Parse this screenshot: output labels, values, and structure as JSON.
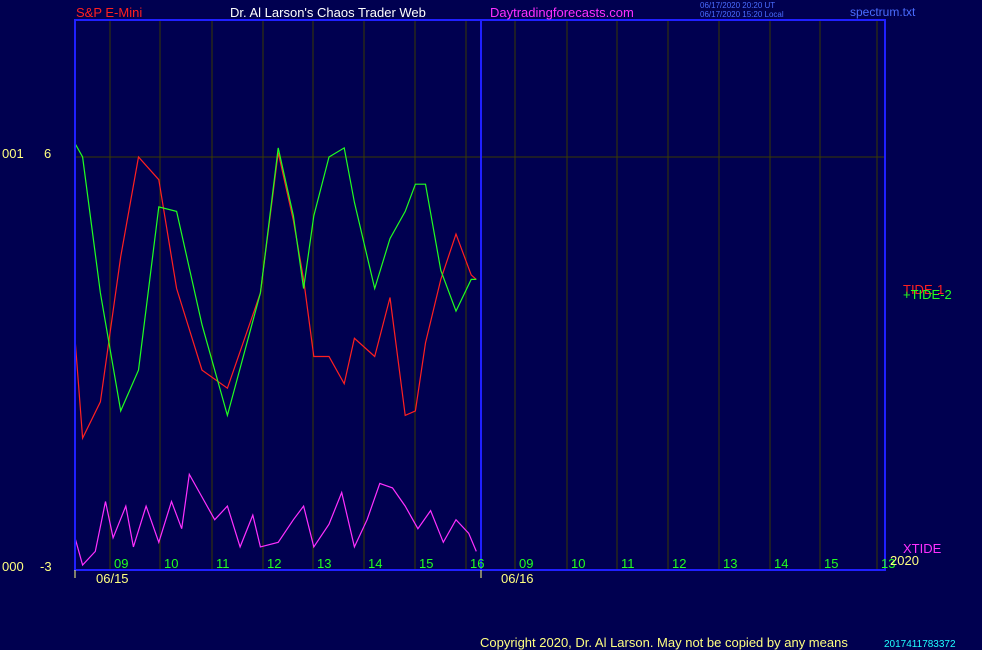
{
  "header": {
    "symbol": "S&P E-Mini",
    "author": "Dr. Al Larson's Chaos Trader Web",
    "site": "Daytradingforecasts.com",
    "stamp_utc": "06/17/2020 20:20 UT",
    "stamp_local": "06/17/2020 15:20 Local",
    "file": "spectrum.txt"
  },
  "left_labels": {
    "upper": "001",
    "upper_value": "6",
    "lower": "000",
    "lower_value": "-3"
  },
  "footer": {
    "copyright": "Copyright 2020, Dr. Al Larson. May not be copied by any means",
    "counter": "2017411783372"
  },
  "colors": {
    "background": "#000050",
    "frame": "#2020ff",
    "grid": "#3a3a00",
    "tide1": "#ff2020",
    "tide2": "#20ff20",
    "xtide": "#ff30ff",
    "hour_labels": "#20ff20",
    "date_labels": "#ffff80",
    "title_symbol": "#ff2020",
    "title_site": "#ff30ff"
  },
  "chart_data": {
    "type": "line",
    "ylim": [
      -3,
      6
    ],
    "x_ticks": [
      "09",
      "10",
      "11",
      "12",
      "13",
      "14",
      "15",
      "16",
      "09",
      "10",
      "11",
      "12",
      "13",
      "14",
      "15",
      "13"
    ],
    "dates": [
      "06/15",
      "06/16"
    ],
    "year": "2020",
    "series": [
      {
        "name": "TIDE-1",
        "color": "#ff2020",
        "x": [
          0,
          0.3,
          1,
          1.8,
          2.5,
          3.3,
          4,
          5,
          6,
          7.3,
          8,
          8.6,
          9,
          9.4,
          10,
          10.6,
          11,
          11.8,
          12.4,
          13,
          13.4,
          13.8,
          14.4,
          15,
          15.6,
          15.8
        ],
        "y": [
          2.0,
          -0.2,
          0.6,
          3.8,
          6.0,
          5.5,
          3.1,
          1.3,
          0.9,
          3.0,
          6.1,
          4.6,
          3.3,
          1.6,
          1.6,
          1.0,
          2.0,
          1.6,
          2.9,
          0.3,
          0.4,
          1.9,
          3.3,
          4.3,
          3.4,
          3.3
        ]
      },
      {
        "name": "TIDE-2",
        "color": "#20ff20",
        "x": [
          0,
          0.3,
          1,
          1.8,
          2.5,
          3.3,
          4,
          5,
          6,
          7.3,
          8,
          8.6,
          9,
          9.4,
          10,
          10.6,
          11,
          11.8,
          12.4,
          13,
          13.4,
          13.8,
          14.4,
          15,
          15.6,
          15.8
        ],
        "y": [
          6.3,
          6.0,
          3.0,
          0.4,
          1.3,
          4.9,
          4.8,
          2.3,
          0.3,
          3.0,
          6.2,
          4.7,
          3.1,
          4.7,
          6.0,
          6.2,
          5.0,
          3.1,
          4.2,
          4.8,
          5.4,
          5.4,
          3.5,
          2.6,
          3.3,
          3.3
        ]
      },
      {
        "name": "XTIDE",
        "color": "#ff30ff",
        "x": [
          0,
          0.3,
          0.8,
          1.2,
          1.5,
          2,
          2.3,
          2.8,
          3.3,
          3.8,
          4.2,
          4.5,
          5,
          5.5,
          6,
          6.5,
          7,
          7.3,
          8,
          8.6,
          9,
          9.4,
          10,
          10.5,
          11,
          11.5,
          12,
          12.5,
          13,
          13.5,
          14,
          14.5,
          15,
          15.5,
          15.8
        ],
        "y": [
          -2.4,
          -3.0,
          -2.7,
          -1.6,
          -2.4,
          -1.7,
          -2.6,
          -1.7,
          -2.5,
          -1.6,
          -2.2,
          -1.0,
          -1.5,
          -2.0,
          -1.7,
          -2.6,
          -1.9,
          -2.6,
          -2.5,
          -2.0,
          -1.7,
          -2.6,
          -2.1,
          -1.4,
          -2.6,
          -2.0,
          -1.2,
          -1.3,
          -1.7,
          -2.2,
          -1.8,
          -2.5,
          -2.0,
          -2.3,
          -2.7
        ]
      }
    ],
    "grid": true
  }
}
